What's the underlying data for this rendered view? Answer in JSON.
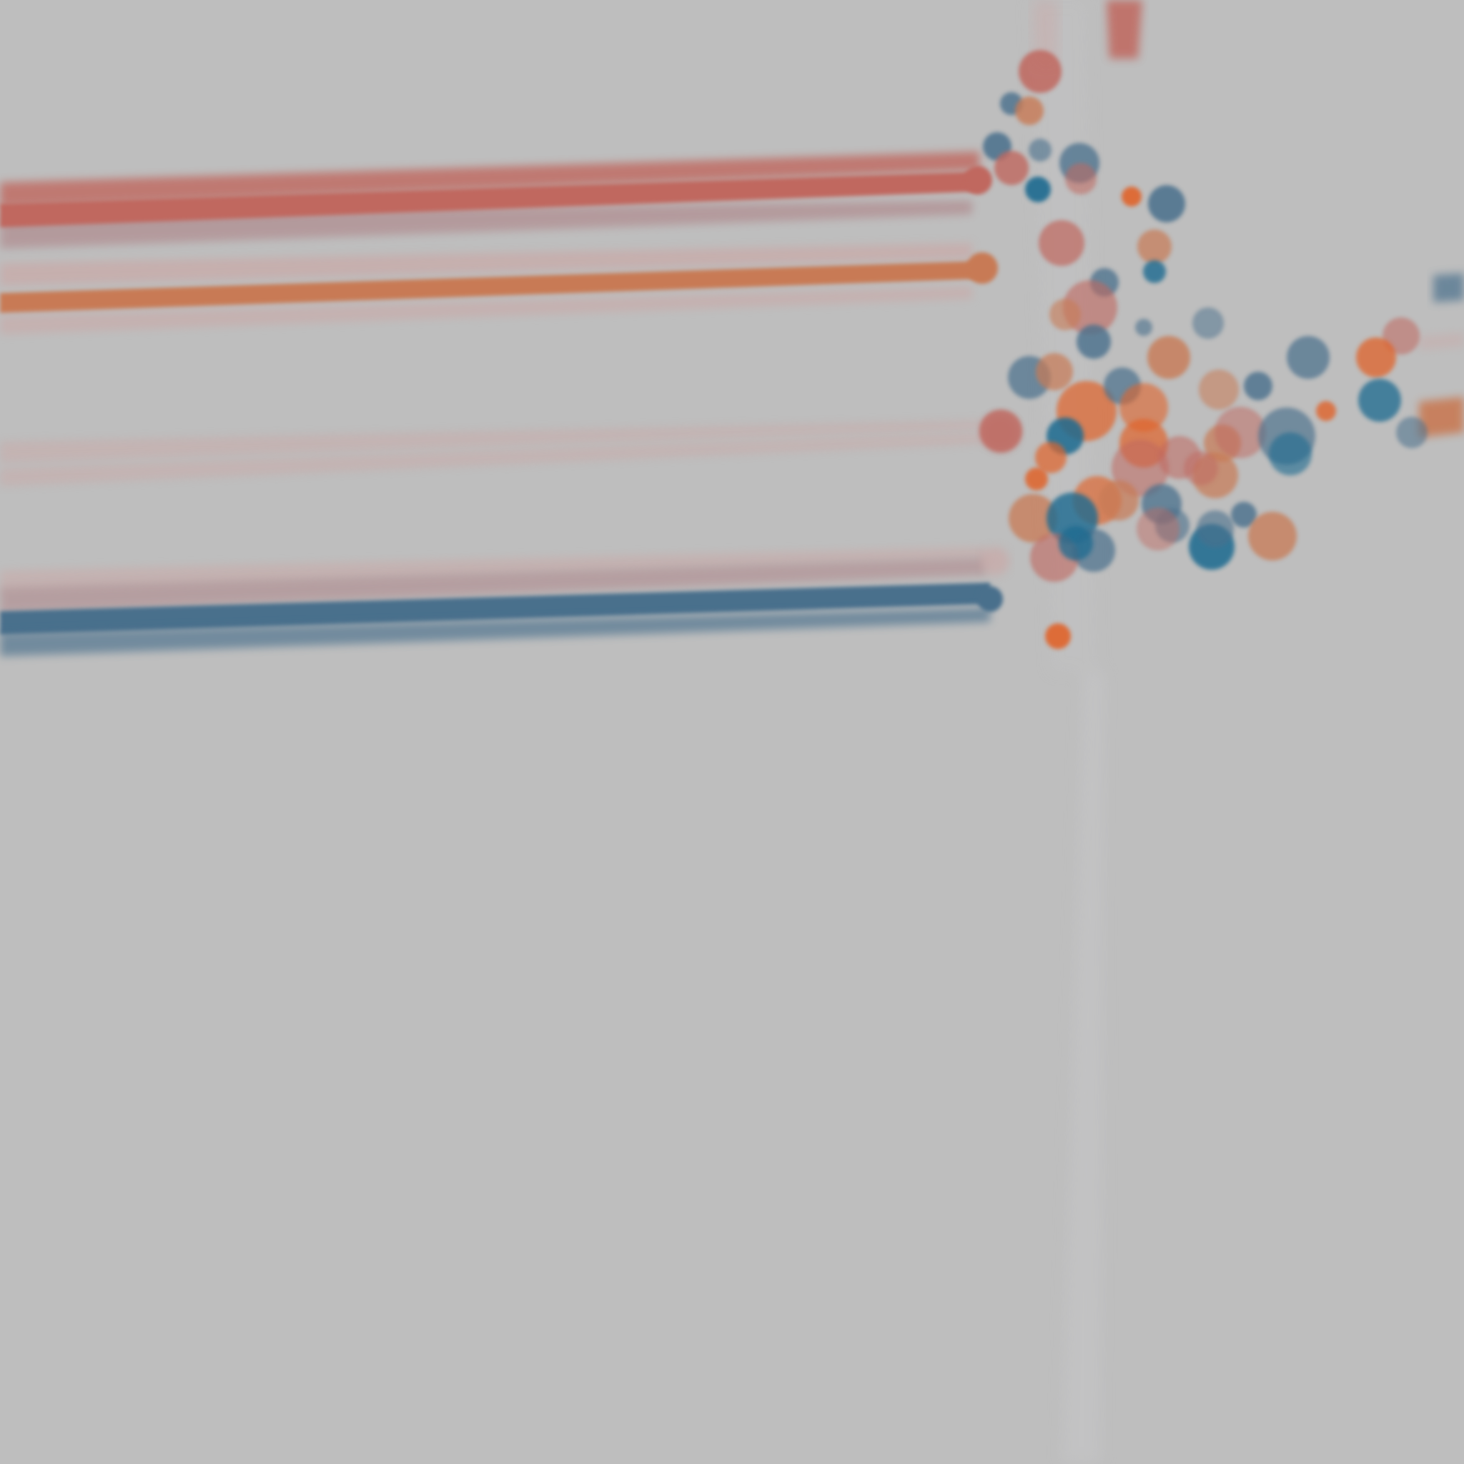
{
  "background": "#bebebe",
  "palette": {
    "red": "#c0675f",
    "orange": "#c87a55",
    "blue": "#4a6f8c",
    "deep_blue": "#1f6a90",
    "vivid_orange": "#e0642c",
    "pale_pink": "#c9a9a7",
    "muted_rose": "#b29497",
    "vertical_haze": "#c6c6c8"
  }
}
